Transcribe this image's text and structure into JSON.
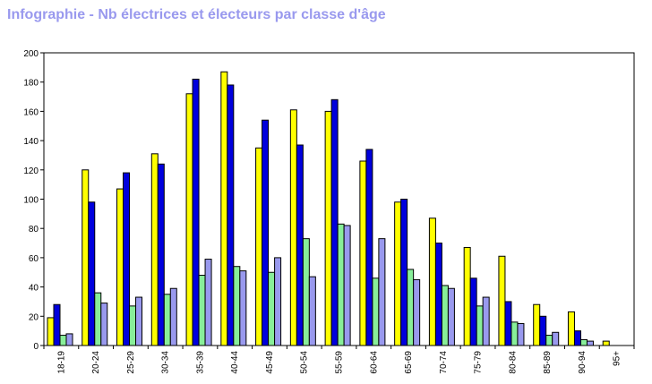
{
  "page": {
    "title": "Infographie - Nb électrices et électeurs par classe d'âge"
  },
  "chart_data": {
    "type": "bar",
    "title": "Infographie - Nb électrices et électeurs par classe d'âge",
    "xlabel": "",
    "ylabel": "",
    "ylim": [
      0,
      200
    ],
    "yticks": [
      0,
      20,
      40,
      60,
      80,
      100,
      120,
      140,
      160,
      180,
      200
    ],
    "grid": false,
    "legend": "none",
    "categories": [
      "18-19",
      "20-24",
      "25-29",
      "30-34",
      "35-39",
      "40-44",
      "45-49",
      "50-54",
      "55-59",
      "60-64",
      "65-69",
      "70-74",
      "75-79",
      "80-84",
      "85-89",
      "90-94",
      "95+"
    ],
    "series": [
      {
        "color": "#ffff00",
        "values": [
          19,
          120,
          107,
          131,
          172,
          187,
          135,
          161,
          160,
          126,
          98,
          87,
          67,
          61,
          28,
          23,
          3
        ]
      },
      {
        "color": "#0000dd",
        "values": [
          28,
          98,
          118,
          124,
          182,
          178,
          154,
          137,
          168,
          134,
          100,
          70,
          46,
          30,
          20,
          10,
          0
        ]
      },
      {
        "color": "#88ee99",
        "values": [
          7,
          36,
          27,
          35,
          48,
          54,
          50,
          73,
          83,
          46,
          52,
          41,
          27,
          16,
          7,
          4,
          0
        ]
      },
      {
        "color": "#9999ee",
        "values": [
          8,
          29,
          33,
          39,
          59,
          51,
          60,
          47,
          82,
          73,
          45,
          39,
          33,
          15,
          9,
          3,
          0
        ]
      }
    ]
  }
}
